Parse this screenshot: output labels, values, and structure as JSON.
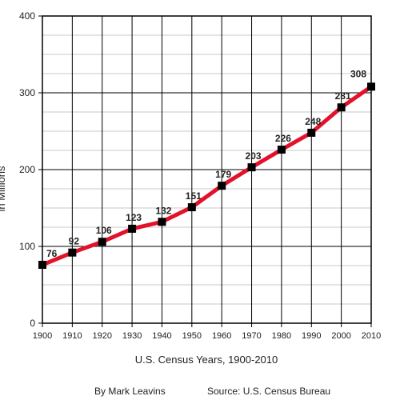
{
  "chart_data": {
    "type": "line",
    "title": "",
    "xlabel": "U.S. Census Years, 1900-2010",
    "ylabel": "in Millions",
    "x": [
      1900,
      1910,
      1920,
      1930,
      1940,
      1950,
      1960,
      1970,
      1980,
      1990,
      2000,
      2010
    ],
    "series": [
      {
        "values": [
          76,
          92,
          106,
          123,
          132,
          151,
          179,
          203,
          226,
          248,
          281,
          308
        ]
      }
    ],
    "data_labels": [
      "76",
      "92",
      "106",
      "123",
      "132",
      "151",
      "179",
      "203",
      "226",
      "248",
      "281",
      "308"
    ],
    "x_tick_labels": [
      "1900",
      "1910",
      "1920",
      "1930",
      "1940",
      "1950",
      "1960",
      "1970",
      "1980",
      "1990",
      "2000",
      "2010"
    ],
    "y_tick_labels": [
      "0",
      "100",
      "200",
      "300",
      "400"
    ],
    "y_ticks": [
      0,
      100,
      200,
      300,
      400
    ],
    "ylim": [
      0,
      400
    ],
    "xlim": [
      1900,
      2010
    ],
    "grid": true,
    "line_color": "#e3122a",
    "marker_color": "#000000",
    "credits": {
      "author": "By Mark Leavins",
      "source": "Source: U.S. Census Bureau"
    }
  }
}
